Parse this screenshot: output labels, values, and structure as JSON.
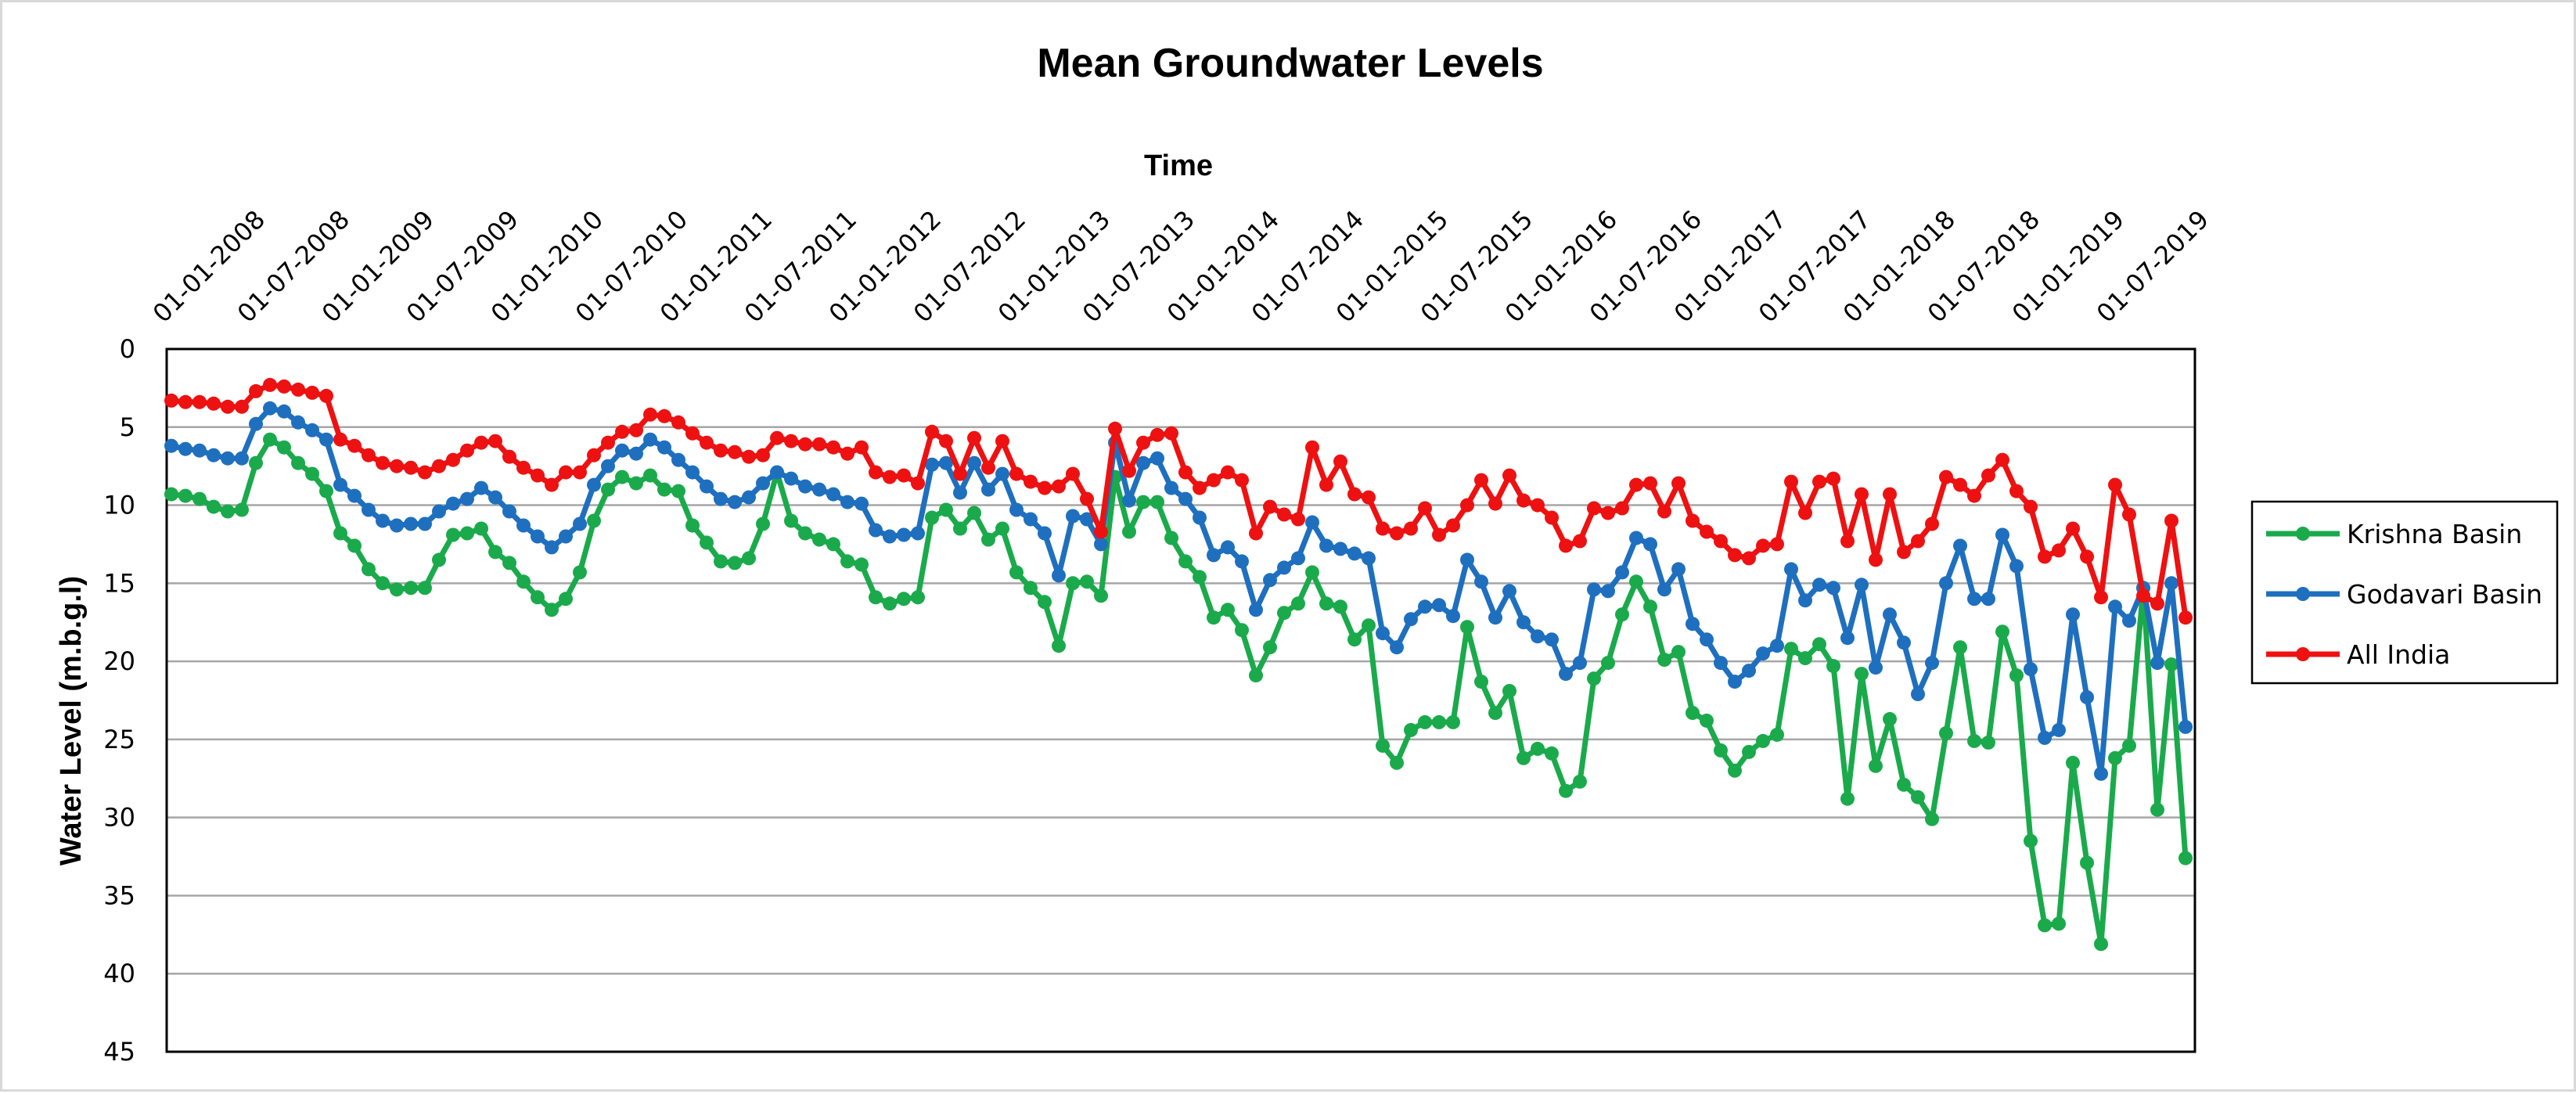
{
  "chart_data": {
    "type": "line",
    "title": "Mean Groundwater Levels",
    "xlabel": "Time",
    "ylabel": "Water Level (m.b.g.l)",
    "x_tick_labels": [
      "01-01-2008",
      "01-07-2008",
      "01-01-2009",
      "01-07-2009",
      "01-01-2010",
      "01-07-2010",
      "01-01-2011",
      "01-07-2011",
      "01-01-2012",
      "01-07-2012",
      "01-01-2013",
      "01-07-2013",
      "01-01-2014",
      "01-07-2014",
      "01-01-2015",
      "01-07-2015",
      "01-01-2016",
      "01-07-2016",
      "01-01-2017",
      "01-07-2017",
      "01-01-2018",
      "01-07-2018",
      "01-01-2019",
      "01-07-2019"
    ],
    "y_axis": {
      "min": 0,
      "max": 45,
      "step": 5,
      "inverted": true,
      "gridlines": true
    },
    "x_axis": {
      "position": "top",
      "start": "2008-01",
      "end": "2019-12",
      "interval": "monthly"
    },
    "legend": {
      "position": "right"
    },
    "series": [
      {
        "name": "Krishna Basin",
        "color": "#1aaa4b",
        "values": [
          9.3,
          9.4,
          9.6,
          10.1,
          10.4,
          10.3,
          7.3,
          5.8,
          6.3,
          7.3,
          8.0,
          9.1,
          11.8,
          12.6,
          14.1,
          15.0,
          15.4,
          15.3,
          15.3,
          13.5,
          11.9,
          11.8,
          11.5,
          13.0,
          13.7,
          14.9,
          15.9,
          16.7,
          16.0,
          14.3,
          11.0,
          9.0,
          8.2,
          8.6,
          8.1,
          9.0,
          9.1,
          11.3,
          12.4,
          13.6,
          13.7,
          13.4,
          11.2,
          7.9,
          11.0,
          11.8,
          12.2,
          12.5,
          13.6,
          13.8,
          15.9,
          16.3,
          16.0,
          15.9,
          10.8,
          10.3,
          11.5,
          10.5,
          12.2,
          11.5,
          14.3,
          15.3,
          16.2,
          19.0,
          15.0,
          14.9,
          15.8,
          8.2,
          11.7,
          9.8,
          9.8,
          12.1,
          13.6,
          14.6,
          17.2,
          16.7,
          18.0,
          20.9,
          19.1,
          16.9,
          16.3,
          14.3,
          16.3,
          16.5,
          18.6,
          17.7,
          25.4,
          26.5,
          24.4,
          23.9,
          23.9,
          23.9,
          17.8,
          21.3,
          23.3,
          21.9,
          26.2,
          25.6,
          25.9,
          28.3,
          27.7,
          21.1,
          20.1,
          17.0,
          14.9,
          16.5,
          19.9,
          19.4,
          23.3,
          23.8,
          25.7,
          27.0,
          25.8,
          25.1,
          24.7,
          19.2,
          19.8,
          18.9,
          20.3,
          28.8,
          20.8,
          26.7,
          23.7,
          27.9,
          28.7,
          30.1,
          24.6,
          19.1,
          25.1,
          25.2,
          18.1,
          20.9,
          31.5,
          36.9,
          36.8,
          26.5,
          32.9,
          38.1,
          26.2,
          25.4,
          15.3,
          29.5,
          20.2,
          32.6
        ]
      },
      {
        "name": "Godavari Basin",
        "color": "#1f6fbf",
        "values": [
          6.2,
          6.4,
          6.5,
          6.8,
          7.0,
          7.0,
          4.8,
          3.8,
          4.0,
          4.7,
          5.2,
          5.8,
          8.7,
          9.4,
          10.3,
          11.0,
          11.3,
          11.2,
          11.2,
          10.4,
          9.9,
          9.6,
          8.9,
          9.5,
          10.4,
          11.3,
          12.0,
          12.7,
          12.0,
          11.2,
          8.7,
          7.5,
          6.5,
          6.7,
          5.8,
          6.3,
          7.1,
          7.9,
          8.8,
          9.6,
          9.8,
          9.5,
          8.6,
          7.9,
          8.3,
          8.8,
          9.0,
          9.3,
          9.8,
          9.9,
          11.6,
          12.0,
          11.9,
          11.8,
          7.4,
          7.3,
          9.2,
          7.3,
          9.0,
          8.0,
          10.3,
          10.9,
          11.8,
          14.5,
          10.7,
          10.9,
          12.5,
          6.0,
          9.7,
          7.3,
          7.0,
          8.9,
          9.6,
          10.8,
          13.2,
          12.7,
          13.6,
          16.7,
          14.8,
          14.0,
          13.4,
          11.1,
          12.6,
          12.8,
          13.1,
          13.4,
          18.2,
          19.1,
          17.3,
          16.5,
          16.4,
          17.1,
          13.5,
          14.9,
          17.2,
          15.5,
          17.5,
          18.4,
          18.6,
          20.8,
          20.1,
          15.4,
          15.5,
          14.3,
          12.1,
          12.5,
          15.4,
          14.1,
          17.6,
          18.6,
          20.1,
          21.3,
          20.6,
          19.5,
          19.0,
          14.1,
          16.1,
          15.1,
          15.3,
          18.5,
          15.1,
          20.4,
          17.0,
          18.8,
          22.1,
          20.1,
          15.0,
          12.6,
          16.0,
          16.0,
          11.9,
          13.9,
          20.5,
          24.9,
          24.4,
          17.0,
          22.3,
          27.2,
          16.5,
          17.4,
          15.3,
          20.1,
          15.0,
          24.2
        ]
      },
      {
        "name": "All India",
        "color": "#ee1111",
        "values": [
          3.3,
          3.4,
          3.4,
          3.5,
          3.7,
          3.7,
          2.7,
          2.3,
          2.4,
          2.6,
          2.8,
          3.0,
          5.8,
          6.2,
          6.8,
          7.3,
          7.5,
          7.6,
          7.9,
          7.5,
          7.1,
          6.5,
          6.0,
          5.9,
          6.9,
          7.6,
          8.1,
          8.7,
          7.9,
          7.9,
          6.8,
          6.0,
          5.3,
          5.2,
          4.2,
          4.3,
          4.7,
          5.4,
          6.0,
          6.5,
          6.6,
          6.9,
          6.8,
          5.7,
          5.9,
          6.1,
          6.1,
          6.3,
          6.7,
          6.3,
          7.9,
          8.2,
          8.1,
          8.6,
          5.3,
          5.9,
          8.0,
          5.7,
          7.6,
          5.9,
          8.0,
          8.5,
          8.9,
          8.8,
          8.0,
          9.6,
          11.7,
          5.1,
          7.8,
          6.0,
          5.5,
          5.4,
          7.9,
          8.9,
          8.4,
          7.9,
          8.4,
          11.8,
          10.1,
          10.6,
          10.9,
          6.3,
          8.7,
          7.2,
          9.3,
          9.5,
          11.5,
          11.8,
          11.5,
          10.2,
          11.9,
          11.3,
          10.0,
          8.4,
          9.9,
          8.1,
          9.7,
          10.0,
          10.8,
          12.6,
          12.3,
          10.2,
          10.5,
          10.2,
          8.7,
          8.6,
          10.4,
          8.6,
          11.0,
          11.7,
          12.3,
          13.2,
          13.4,
          12.6,
          12.5,
          8.5,
          10.5,
          8.5,
          8.3,
          12.3,
          9.3,
          13.5,
          9.3,
          13.0,
          12.3,
          11.2,
          8.2,
          8.7,
          9.4,
          8.1,
          7.1,
          9.1,
          10.1,
          13.3,
          12.9,
          11.5,
          13.3,
          15.9,
          8.7,
          10.6,
          15.8,
          16.3,
          11.0,
          17.2
        ]
      }
    ]
  }
}
